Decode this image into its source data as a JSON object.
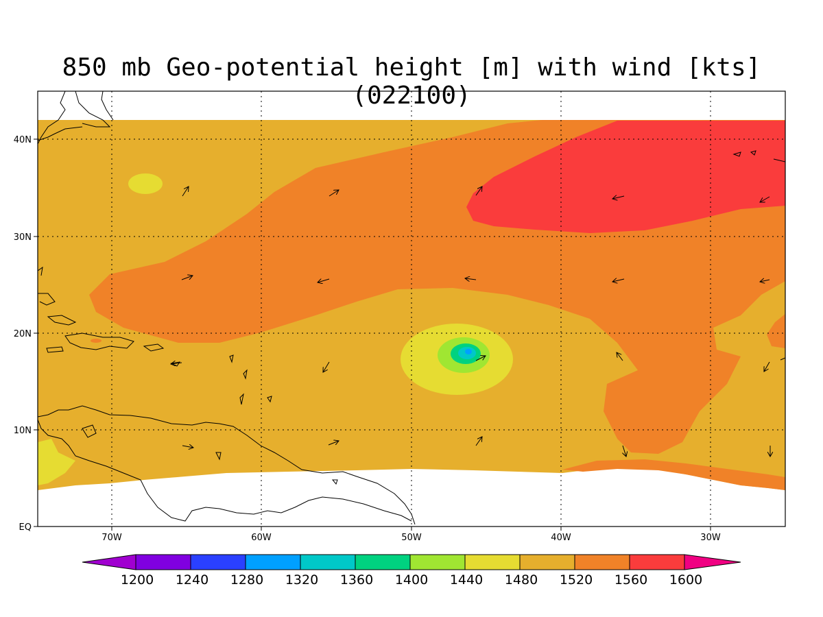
{
  "title": "850 mb Geo-potential height [m] with wind [kts] (022100)",
  "axes": {
    "longitude_labels": [
      "70W",
      "60W",
      "50W",
      "40W",
      "30W"
    ],
    "latitude_labels": [
      "40N",
      "30N",
      "20N",
      "10N",
      "EQ"
    ]
  },
  "colorbar": {
    "levels": [
      "1200",
      "1240",
      "1280",
      "1320",
      "1360",
      "1400",
      "1440",
      "1480",
      "1520",
      "1560",
      "1600"
    ],
    "colors": [
      "#a000d0",
      "#8000e0",
      "#2a40ff",
      "#00a0ff",
      "#00c8c8",
      "#00d280",
      "#a0e632",
      "#e6dc32",
      "#e6af2d",
      "#f08228",
      "#fa3c3c",
      "#f00082"
    ]
  },
  "map_colors": {
    "c1440": "#a0e632",
    "c1480": "#e6dc32",
    "c1520": "#e6af2d",
    "c1560": "#f08228",
    "c1600": "#fa3c3c",
    "c1400": "#00d280",
    "c1360": "#00c8c8",
    "c1320": "#00a0ff"
  }
}
